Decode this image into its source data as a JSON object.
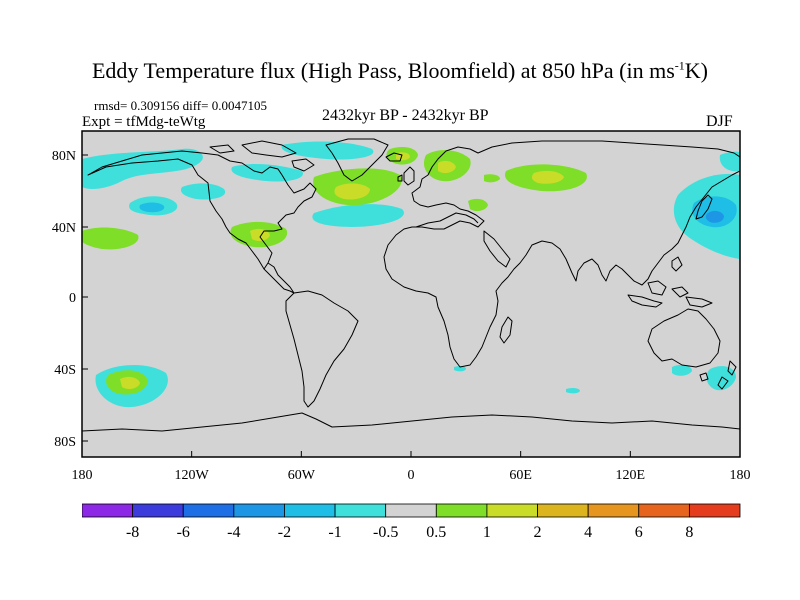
{
  "title": {
    "prefix": "Eddy Temperature flux (High Pass, Bloomfield) at 850 hPa (in ms",
    "sup": "-1",
    "suffix": "K)"
  },
  "stats": "rmsd= 0.309156  diff= 0.0047105",
  "expt": "Expt = tfMdg-teWtg",
  "period": "2432kyr BP - 2432kyr BP",
  "season": "DJF",
  "map": {
    "lat_ticks": [
      "80N",
      "40N",
      "0",
      "40S",
      "80S"
    ],
    "lon_ticks": [
      "180",
      "120W",
      "60W",
      "0",
      "60E",
      "120E",
      "180"
    ],
    "colors": {
      "ocean": "#d3d3d3",
      "coast": "#000000",
      "cyan": "#3fe0dc",
      "lightblue": "#1ebee6",
      "blue": "#1e96e6",
      "green": "#7ede28",
      "yellowgreen": "#c8dc28"
    }
  },
  "colorbar": {
    "colors": [
      "#8c28e6",
      "#3c3cdc",
      "#1e6ee6",
      "#1e96e6",
      "#1ebee6",
      "#3fe0dc",
      "#d3d3d3",
      "#7ede28",
      "#c8dc28",
      "#dcb41e",
      "#e6961e",
      "#e6641e",
      "#e63c1e"
    ],
    "labels": [
      "-8",
      "-6",
      "-4",
      "-2",
      "-1",
      "-0.5",
      "0.5",
      "1",
      "2",
      "4",
      "6",
      "8"
    ]
  }
}
